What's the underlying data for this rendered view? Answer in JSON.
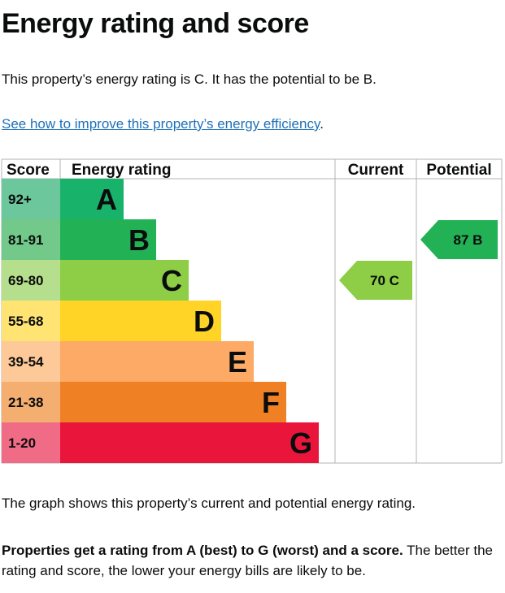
{
  "page": {
    "title": "Energy rating and score",
    "intro": "This property’s energy rating is C. It has the potential to be B.",
    "link_text": "See how to improve this property’s energy efficiency",
    "link_suffix": ".",
    "caption": "The graph shows this property’s current and potential energy rating.",
    "note_bold": "Properties get a rating from A (best) to G (worst) and a score.",
    "note_rest": " The better the rating and score, the lower your energy bills are likely to be."
  },
  "chart_data": {
    "type": "table",
    "title": "Energy rating and score",
    "columns": [
      "Score",
      "Energy rating",
      "Current",
      "Potential"
    ],
    "bands": [
      {
        "score": "92+",
        "letter": "A",
        "color": "#19b26b",
        "score_bg": "#6cc79c"
      },
      {
        "score": "81-91",
        "letter": "B",
        "color": "#23b155",
        "score_bg": "#72c989"
      },
      {
        "score": "69-80",
        "letter": "C",
        "color": "#8dce46",
        "score_bg": "#b6df8d"
      },
      {
        "score": "55-68",
        "letter": "D",
        "color": "#ffd426",
        "score_bg": "#ffe473"
      },
      {
        "score": "39-54",
        "letter": "E",
        "color": "#fcaa65",
        "score_bg": "#fdc998"
      },
      {
        "score": "21-38",
        "letter": "F",
        "color": "#ef8023",
        "score_bg": "#f4ae70"
      },
      {
        "score": "1-20",
        "letter": "G",
        "color": "#e9153b",
        "score_bg": "#f06b85"
      }
    ],
    "current": {
      "value": 70,
      "letter": "C",
      "label": "70 C",
      "color": "#8dce46"
    },
    "potential": {
      "value": 87,
      "letter": "B",
      "label": "87 B",
      "color": "#23b155"
    }
  }
}
